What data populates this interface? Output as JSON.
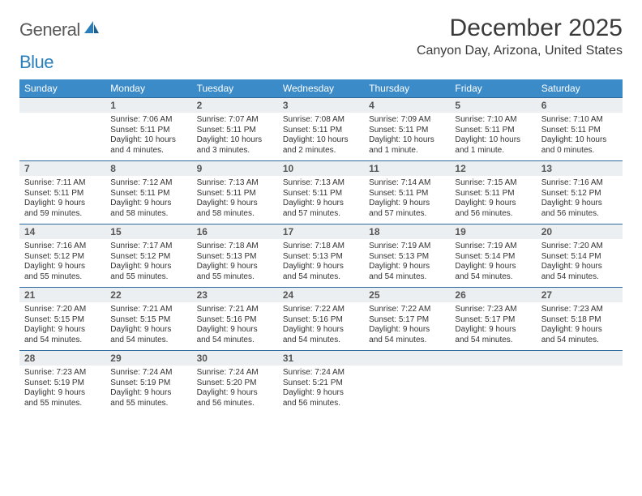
{
  "logo": {
    "text_gray": "General",
    "text_blue": "Blue"
  },
  "title": "December 2025",
  "location": "Canyon Day, Arizona, United States",
  "colors": {
    "header_bg": "#3b8bc9",
    "header_text": "#ffffff",
    "daynum_bg": "#eceff1",
    "daynum_border": "#2e6a9e",
    "body_text": "#333333",
    "logo_gray": "#5a5a5a",
    "logo_blue": "#2a7fba"
  },
  "day_names": [
    "Sunday",
    "Monday",
    "Tuesday",
    "Wednesday",
    "Thursday",
    "Friday",
    "Saturday"
  ],
  "weeks": [
    [
      {
        "n": "",
        "empty": true
      },
      {
        "n": "1",
        "sunrise": "7:06 AM",
        "sunset": "5:11 PM",
        "daylight": "10 hours and 4 minutes."
      },
      {
        "n": "2",
        "sunrise": "7:07 AM",
        "sunset": "5:11 PM",
        "daylight": "10 hours and 3 minutes."
      },
      {
        "n": "3",
        "sunrise": "7:08 AM",
        "sunset": "5:11 PM",
        "daylight": "10 hours and 2 minutes."
      },
      {
        "n": "4",
        "sunrise": "7:09 AM",
        "sunset": "5:11 PM",
        "daylight": "10 hours and 1 minute."
      },
      {
        "n": "5",
        "sunrise": "7:10 AM",
        "sunset": "5:11 PM",
        "daylight": "10 hours and 1 minute."
      },
      {
        "n": "6",
        "sunrise": "7:10 AM",
        "sunset": "5:11 PM",
        "daylight": "10 hours and 0 minutes."
      }
    ],
    [
      {
        "n": "7",
        "sunrise": "7:11 AM",
        "sunset": "5:11 PM",
        "daylight": "9 hours and 59 minutes."
      },
      {
        "n": "8",
        "sunrise": "7:12 AM",
        "sunset": "5:11 PM",
        "daylight": "9 hours and 58 minutes."
      },
      {
        "n": "9",
        "sunrise": "7:13 AM",
        "sunset": "5:11 PM",
        "daylight": "9 hours and 58 minutes."
      },
      {
        "n": "10",
        "sunrise": "7:13 AM",
        "sunset": "5:11 PM",
        "daylight": "9 hours and 57 minutes."
      },
      {
        "n": "11",
        "sunrise": "7:14 AM",
        "sunset": "5:11 PM",
        "daylight": "9 hours and 57 minutes."
      },
      {
        "n": "12",
        "sunrise": "7:15 AM",
        "sunset": "5:11 PM",
        "daylight": "9 hours and 56 minutes."
      },
      {
        "n": "13",
        "sunrise": "7:16 AM",
        "sunset": "5:12 PM",
        "daylight": "9 hours and 56 minutes."
      }
    ],
    [
      {
        "n": "14",
        "sunrise": "7:16 AM",
        "sunset": "5:12 PM",
        "daylight": "9 hours and 55 minutes."
      },
      {
        "n": "15",
        "sunrise": "7:17 AM",
        "sunset": "5:12 PM",
        "daylight": "9 hours and 55 minutes."
      },
      {
        "n": "16",
        "sunrise": "7:18 AM",
        "sunset": "5:13 PM",
        "daylight": "9 hours and 55 minutes."
      },
      {
        "n": "17",
        "sunrise": "7:18 AM",
        "sunset": "5:13 PM",
        "daylight": "9 hours and 54 minutes."
      },
      {
        "n": "18",
        "sunrise": "7:19 AM",
        "sunset": "5:13 PM",
        "daylight": "9 hours and 54 minutes."
      },
      {
        "n": "19",
        "sunrise": "7:19 AM",
        "sunset": "5:14 PM",
        "daylight": "9 hours and 54 minutes."
      },
      {
        "n": "20",
        "sunrise": "7:20 AM",
        "sunset": "5:14 PM",
        "daylight": "9 hours and 54 minutes."
      }
    ],
    [
      {
        "n": "21",
        "sunrise": "7:20 AM",
        "sunset": "5:15 PM",
        "daylight": "9 hours and 54 minutes."
      },
      {
        "n": "22",
        "sunrise": "7:21 AM",
        "sunset": "5:15 PM",
        "daylight": "9 hours and 54 minutes."
      },
      {
        "n": "23",
        "sunrise": "7:21 AM",
        "sunset": "5:16 PM",
        "daylight": "9 hours and 54 minutes."
      },
      {
        "n": "24",
        "sunrise": "7:22 AM",
        "sunset": "5:16 PM",
        "daylight": "9 hours and 54 minutes."
      },
      {
        "n": "25",
        "sunrise": "7:22 AM",
        "sunset": "5:17 PM",
        "daylight": "9 hours and 54 minutes."
      },
      {
        "n": "26",
        "sunrise": "7:23 AM",
        "sunset": "5:17 PM",
        "daylight": "9 hours and 54 minutes."
      },
      {
        "n": "27",
        "sunrise": "7:23 AM",
        "sunset": "5:18 PM",
        "daylight": "9 hours and 54 minutes."
      }
    ],
    [
      {
        "n": "28",
        "sunrise": "7:23 AM",
        "sunset": "5:19 PM",
        "daylight": "9 hours and 55 minutes."
      },
      {
        "n": "29",
        "sunrise": "7:24 AM",
        "sunset": "5:19 PM",
        "daylight": "9 hours and 55 minutes."
      },
      {
        "n": "30",
        "sunrise": "7:24 AM",
        "sunset": "5:20 PM",
        "daylight": "9 hours and 56 minutes."
      },
      {
        "n": "31",
        "sunrise": "7:24 AM",
        "sunset": "5:21 PM",
        "daylight": "9 hours and 56 minutes."
      },
      {
        "n": "",
        "empty": true
      },
      {
        "n": "",
        "empty": true
      },
      {
        "n": "",
        "empty": true
      }
    ]
  ],
  "labels": {
    "sunrise_prefix": "Sunrise: ",
    "sunset_prefix": "Sunset: ",
    "daylight_prefix": "Daylight: "
  }
}
